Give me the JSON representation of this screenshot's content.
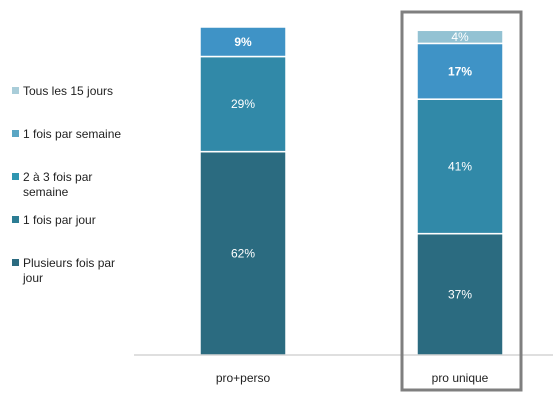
{
  "chart_data": {
    "type": "bar",
    "stacked": true,
    "categories": [
      "pro+perso",
      "pro unique"
    ],
    "series": [
      {
        "name": "Plusieurs fois par jour",
        "values": [
          62,
          37
        ],
        "color": "#2b6b80"
      },
      {
        "name": "1 fois par jour",
        "values": [
          0,
          0
        ],
        "color": "#2c7d94"
      },
      {
        "name": "2 à 3 fois par semaine",
        "values": [
          29,
          41
        ],
        "color": "#3189a8"
      },
      {
        "name": "1 fois par semaine",
        "values": [
          9,
          17
        ],
        "color": "#3f93c6"
      },
      {
        "name": "Tous les 15 jours",
        "values": [
          0,
          4
        ],
        "color": "#93c2d3"
      }
    ],
    "data_labels": [
      [
        "62%",
        "",
        "29%",
        "9%",
        ""
      ],
      [
        "37%",
        "",
        "41%",
        "17%",
        "4%"
      ]
    ],
    "bold_labels": [
      "1 fois par semaine"
    ],
    "ylim": [
      0,
      100
    ],
    "legend_position": "left",
    "legend_entries": [
      "Tous les 15 jours",
      "1 fois par semaine",
      "2 à 3 fois par semaine",
      "1 fois par jour",
      "Plusieurs fois par jour"
    ],
    "legend_lines": [
      [
        "Tous les 15 jours"
      ],
      [
        "1 fois par semaine"
      ],
      [
        "2 à 3 fois par",
        "semaine"
      ],
      [
        "1 fois par jour"
      ],
      [
        "Plusieurs fois par",
        "jour"
      ]
    ],
    "legend_colors": [
      "#a9cdd9",
      "#5aa6c4",
      "#2f96b1",
      "#2c7d94",
      "#2b6b80"
    ],
    "highlighted_category": "pro unique",
    "highlight_color": "#7f7f7f"
  }
}
